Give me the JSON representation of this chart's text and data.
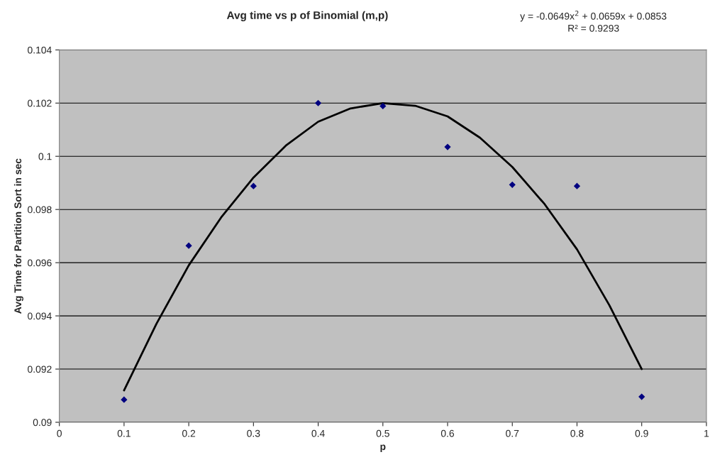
{
  "chart_data": {
    "type": "scatter",
    "title": "Avg time vs p of Binomial (m,p)",
    "xlabel": "p",
    "ylabel": "Avg Time for Partition Sort in sec",
    "annotations": [
      "y = -0.0649x$^{2}$ + 0.0659x + 0.0853",
      "R² = 0.9293"
    ],
    "series": [
      {
        "color": "#000080",
        "marker": "diamond",
        "x": [
          0.1,
          0.2,
          0.3,
          0.4,
          0.5,
          0.6,
          0.7,
          0.8,
          0.9
        ],
        "values": [
          0.09085,
          0.09664,
          0.09888,
          0.102,
          0.10189,
          0.10035,
          0.09893,
          0.09888,
          0.09096
        ]
      },
      {
        "type": "line",
        "color": "#000000",
        "marker": "none",
        "line_style": "solid",
        "x": [
          0.1,
          0.15,
          0.2,
          0.25,
          0.3,
          0.35,
          0.4,
          0.45,
          0.5,
          0.55,
          0.6,
          0.65,
          0.7,
          0.75,
          0.8,
          0.85,
          0.9
        ],
        "values": [
          0.0912,
          0.0937,
          0.0959,
          0.0977,
          0.0992,
          0.1004,
          0.1013,
          0.1018,
          0.102,
          0.1019,
          0.1015,
          0.1007,
          0.0996,
          0.0982,
          0.0965,
          0.0944,
          0.092
        ]
      }
    ],
    "xlim": [
      0,
      1
    ],
    "xticks": [
      0,
      0.1,
      0.2,
      0.3,
      0.4,
      0.5,
      0.6,
      0.7,
      0.8,
      0.9,
      1
    ],
    "ylim": [
      0.09,
      0.104
    ],
    "yticks": [
      0.09,
      0.092,
      0.094,
      0.096,
      0.098,
      0.1,
      0.102,
      0.104
    ],
    "grid": "y",
    "legend": false
  }
}
